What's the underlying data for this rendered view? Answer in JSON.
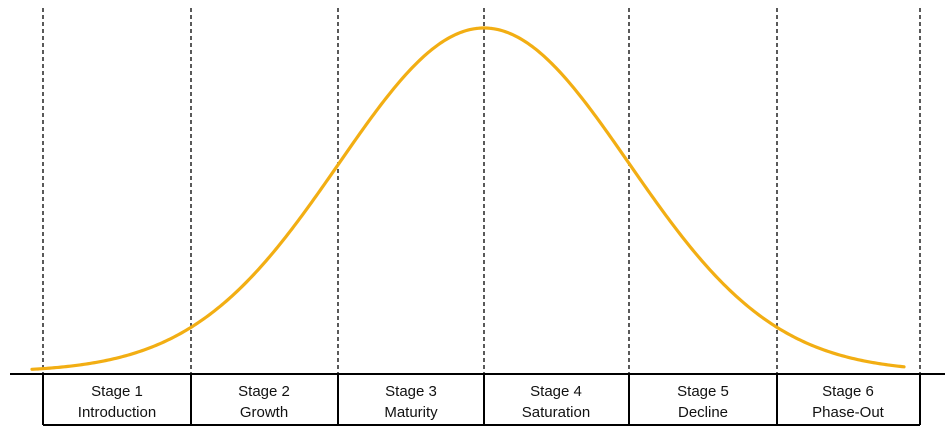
{
  "diagram": {
    "curve_color": "#F2AE13",
    "stages": [
      {
        "number": "Stage 1",
        "name": "Introduction"
      },
      {
        "number": "Stage 2",
        "name": "Growth"
      },
      {
        "number": "Stage 3",
        "name": "Maturity"
      },
      {
        "number": "Stage 4",
        "name": "Saturation"
      },
      {
        "number": "Stage 5",
        "name": "Decline"
      },
      {
        "number": "Stage 6",
        "name": "Phase-Out"
      }
    ]
  }
}
